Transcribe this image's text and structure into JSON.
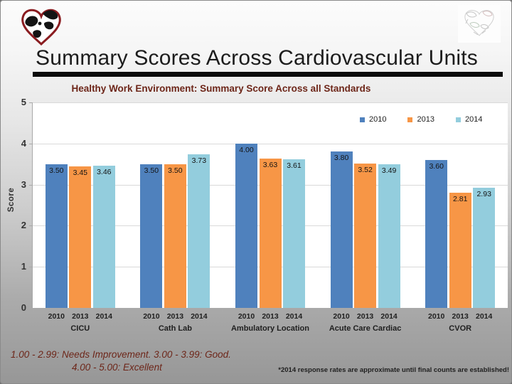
{
  "slide": {
    "title": "Summary Scores Across Cardiovascular Units",
    "grading_line1": "1.00 - 2.99: Needs Improvement. 3.00 - 3.99: Good.",
    "grading_line2": "4.00 - 5.00: Excellent",
    "footnote": "*2014 response rates are approximate until final counts are established!"
  },
  "icons": {
    "logo": "heart-globe-logo",
    "watermark": "faded-heart-sketch"
  },
  "colors": {
    "accent_maroon": "#6d2619",
    "series_2010": "#4F81BD",
    "series_2013": "#F79646",
    "series_2014": "#93CDDD",
    "gridline": "#d9d9d9",
    "axis": "#a9a9a9",
    "title_rule": "#0d0d0d"
  },
  "chart_data": {
    "type": "bar",
    "title": "Healthy Work Environment: Summary Score Across all Standards",
    "xlabel": "",
    "ylabel": "Score",
    "ylim": [
      0,
      5
    ],
    "yticks": [
      0,
      1,
      2,
      3,
      4,
      5
    ],
    "grid": true,
    "legend_position": "inside-top-right",
    "data_labels": "inside-end",
    "categories": [
      "CICU",
      "Cath Lab",
      "Ambulatory Location",
      "Acute Care Cardiac",
      "CVOR"
    ],
    "series": [
      {
        "name": "2010",
        "color": "#4F81BD",
        "values": [
          3.5,
          3.5,
          4.0,
          3.8,
          3.6
        ]
      },
      {
        "name": "2013",
        "color": "#F79646",
        "values": [
          3.45,
          3.5,
          3.63,
          3.52,
          2.81
        ]
      },
      {
        "name": "2014",
        "color": "#93CDDD",
        "values": [
          3.46,
          3.73,
          3.61,
          3.49,
          2.93
        ]
      }
    ]
  }
}
